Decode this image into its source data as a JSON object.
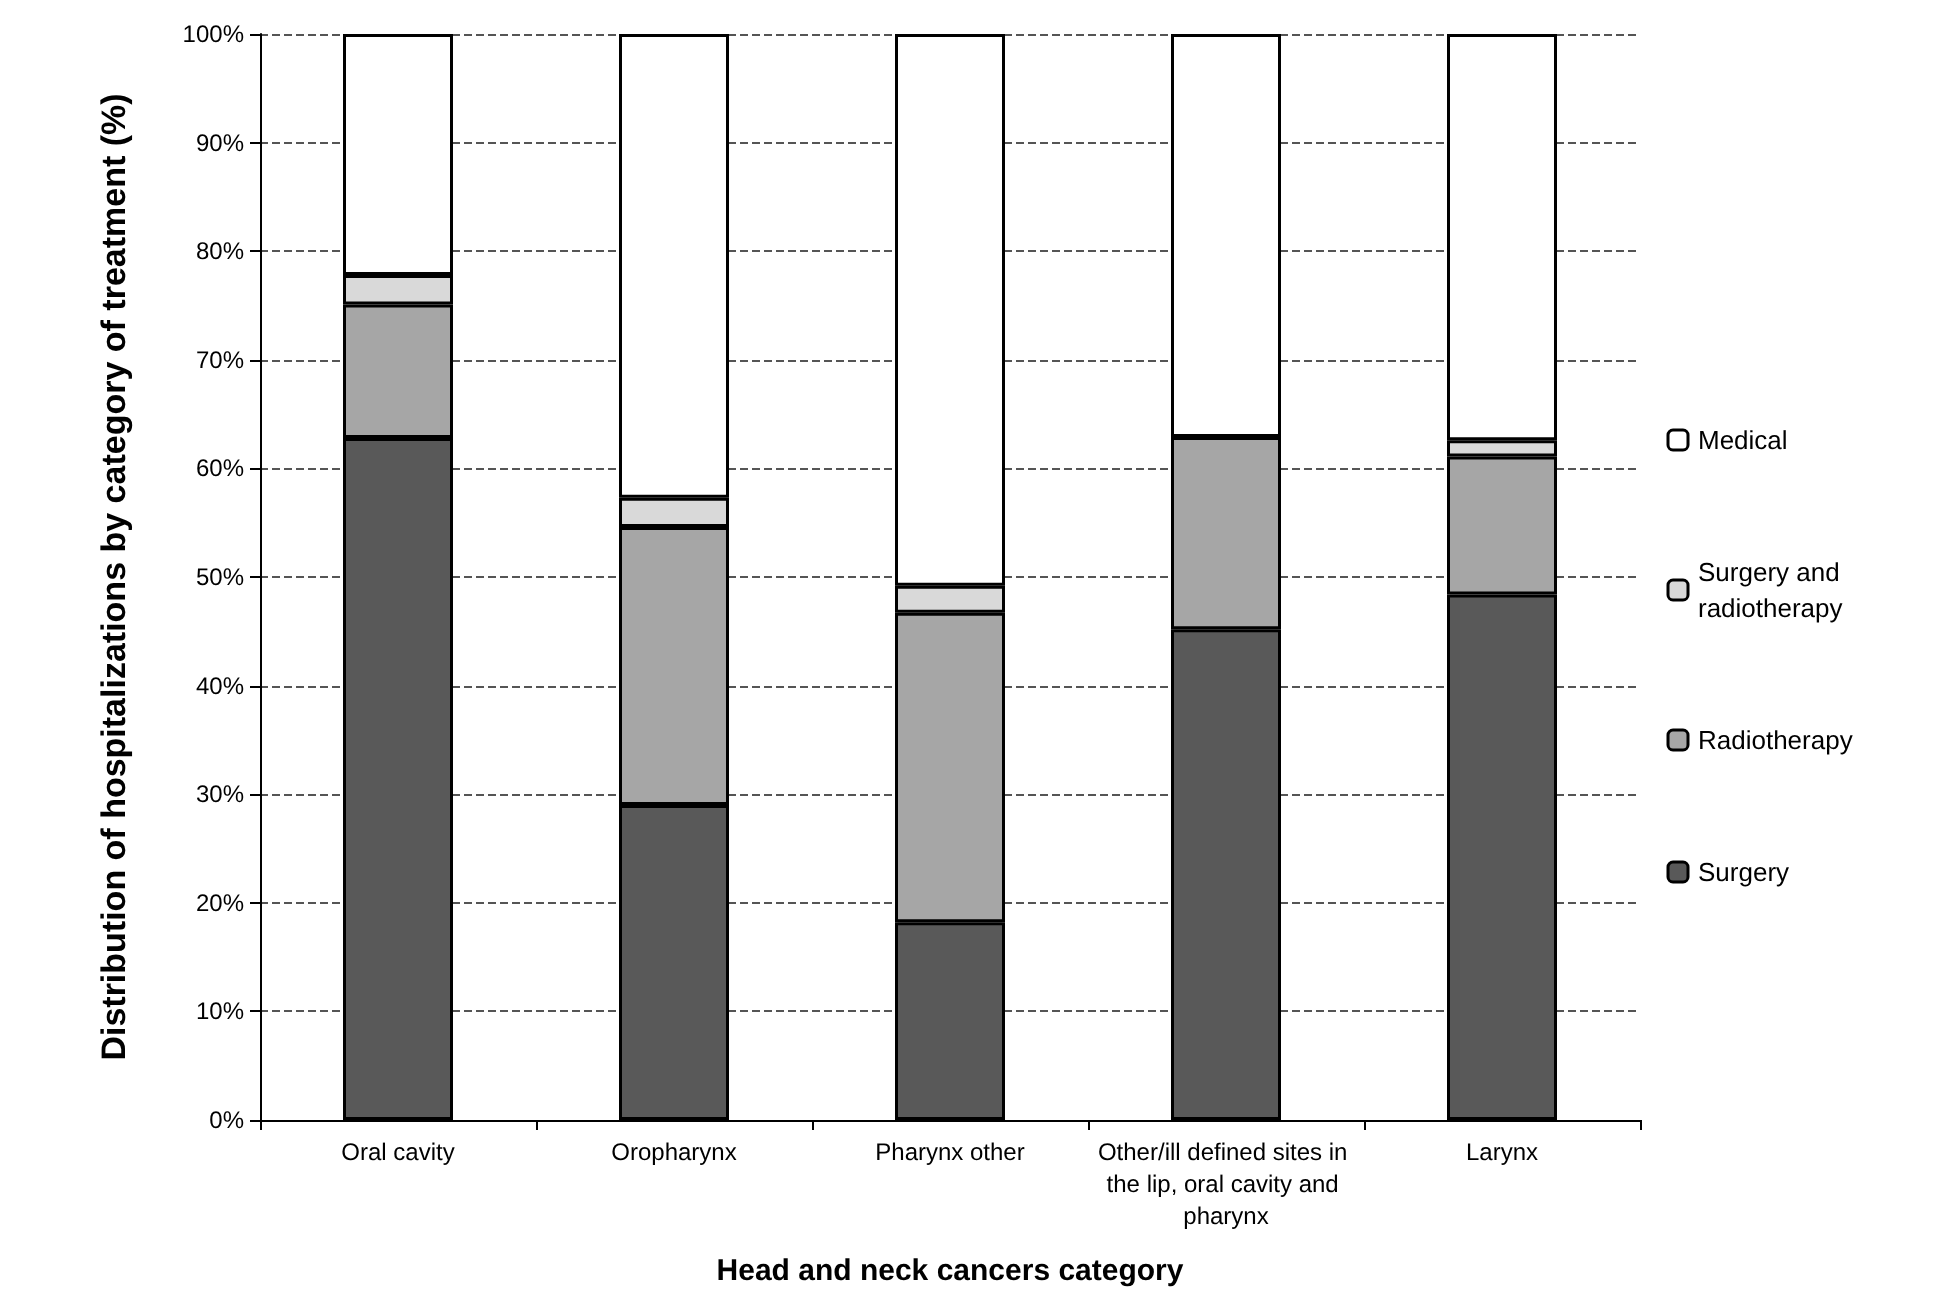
{
  "chart_data": {
    "type": "bar",
    "stacked": true,
    "xlabel": "Head and neck cancers category",
    "ylabel": "Distribution of hospitalizations by category of treatment (%)",
    "categories": [
      "Oral cavity",
      "Oropharynx",
      "Pharynx other",
      "Other/ill defined sites in the lip, oral cavity and pharynx",
      "Larynx"
    ],
    "series": [
      {
        "name": "Surgery",
        "color": "#595959",
        "values": [
          62.8,
          29.0,
          18.2,
          45.2,
          48.4
        ]
      },
      {
        "name": "Radiotherapy",
        "color": "#a6a6a6",
        "values": [
          12.3,
          25.6,
          28.5,
          17.7,
          12.7
        ]
      },
      {
        "name": "Surgery and radiotherapy",
        "color": "#d9d9d9",
        "values": [
          2.7,
          2.7,
          2.5,
          0,
          1.5
        ]
      },
      {
        "name": "Medical",
        "color": "#ffffff",
        "values": [
          22.2,
          42.7,
          50.8,
          37.1,
          37.4
        ]
      }
    ],
    "ylim": [
      0,
      100
    ],
    "yticks": [
      {
        "value": 0,
        "label": "0%"
      },
      {
        "value": 10,
        "label": "10%"
      },
      {
        "value": 20,
        "label": "20%"
      },
      {
        "value": 30,
        "label": "30%"
      },
      {
        "value": 40,
        "label": "40%"
      },
      {
        "value": 50,
        "label": "50%"
      },
      {
        "value": 60,
        "label": "60%"
      },
      {
        "value": 70,
        "label": "70%"
      },
      {
        "value": 80,
        "label": "80%"
      },
      {
        "value": 90,
        "label": "90%"
      },
      {
        "value": 100,
        "label": "100%"
      }
    ],
    "grid": "y",
    "legend": "right"
  }
}
